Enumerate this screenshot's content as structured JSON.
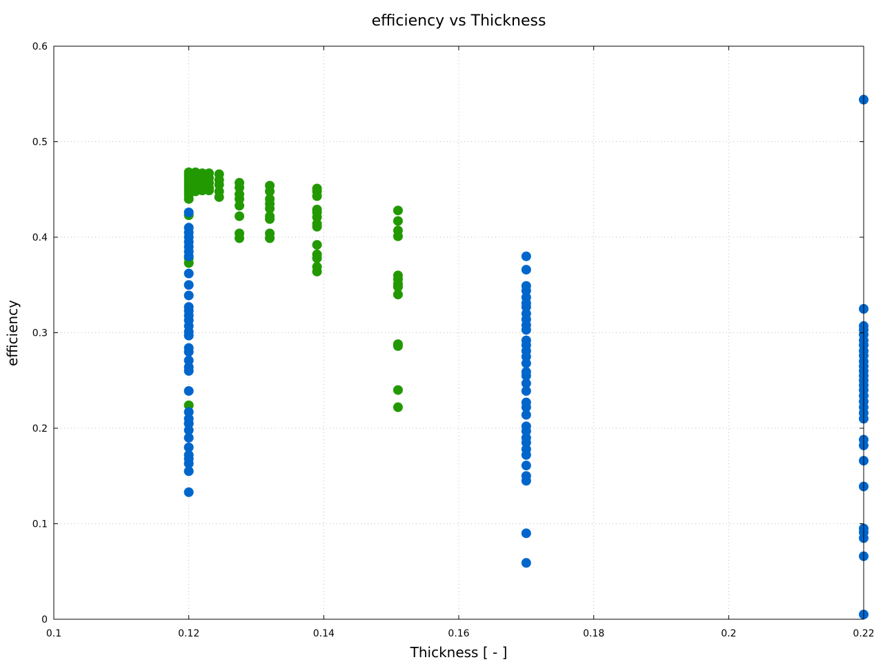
{
  "chart_data": {
    "type": "scatter",
    "title": "efficiency vs Thickness",
    "xlabel": "Thickness [ - ]",
    "ylabel": "efficiency",
    "xlim": [
      0.1,
      0.22
    ],
    "ylim": [
      0,
      0.6
    ],
    "xticks": [
      0.1,
      0.12,
      0.14,
      0.16,
      0.18,
      0.2,
      0.22
    ],
    "xtick_labels": [
      "0.1",
      "0.12",
      "0.14",
      "0.16",
      "0.18",
      "0.2",
      "0.22"
    ],
    "yticks": [
      0,
      0.1,
      0.2,
      0.3,
      0.4,
      0.5,
      0.6
    ],
    "ytick_labels": [
      "0",
      "0.1",
      "0.2",
      "0.3",
      "0.4",
      "0.5",
      "0.6"
    ],
    "grid": true,
    "legend": "none",
    "series": [
      {
        "name": "green",
        "color": "#229900",
        "points": [
          [
            0.12,
            0.468
          ],
          [
            0.12,
            0.465
          ],
          [
            0.12,
            0.462
          ],
          [
            0.12,
            0.459
          ],
          [
            0.12,
            0.456
          ],
          [
            0.12,
            0.453
          ],
          [
            0.12,
            0.45
          ],
          [
            0.12,
            0.447
          ],
          [
            0.12,
            0.444
          ],
          [
            0.12,
            0.44
          ],
          [
            0.12,
            0.423
          ],
          [
            0.12,
            0.378
          ],
          [
            0.12,
            0.373
          ],
          [
            0.12,
            0.224
          ],
          [
            0.12,
            0.205
          ],
          [
            0.121,
            0.468
          ],
          [
            0.121,
            0.463
          ],
          [
            0.121,
            0.458
          ],
          [
            0.121,
            0.453
          ],
          [
            0.121,
            0.448
          ],
          [
            0.122,
            0.467
          ],
          [
            0.122,
            0.462
          ],
          [
            0.122,
            0.457
          ],
          [
            0.122,
            0.452
          ],
          [
            0.122,
            0.449
          ],
          [
            0.123,
            0.467
          ],
          [
            0.123,
            0.462
          ],
          [
            0.123,
            0.457
          ],
          [
            0.123,
            0.452
          ],
          [
            0.123,
            0.449
          ],
          [
            0.1245,
            0.466
          ],
          [
            0.1245,
            0.46
          ],
          [
            0.1245,
            0.455
          ],
          [
            0.1245,
            0.448
          ],
          [
            0.1245,
            0.442
          ],
          [
            0.1275,
            0.457
          ],
          [
            0.1275,
            0.452
          ],
          [
            0.1275,
            0.445
          ],
          [
            0.1275,
            0.44
          ],
          [
            0.1275,
            0.433
          ],
          [
            0.1275,
            0.422
          ],
          [
            0.1275,
            0.404
          ],
          [
            0.1275,
            0.399
          ],
          [
            0.132,
            0.454
          ],
          [
            0.132,
            0.448
          ],
          [
            0.132,
            0.44
          ],
          [
            0.132,
            0.435
          ],
          [
            0.132,
            0.43
          ],
          [
            0.132,
            0.422
          ],
          [
            0.132,
            0.419
          ],
          [
            0.132,
            0.404
          ],
          [
            0.132,
            0.399
          ],
          [
            0.139,
            0.451
          ],
          [
            0.139,
            0.448
          ],
          [
            0.139,
            0.443
          ],
          [
            0.139,
            0.429
          ],
          [
            0.139,
            0.426
          ],
          [
            0.139,
            0.421
          ],
          [
            0.139,
            0.414
          ],
          [
            0.139,
            0.411
          ],
          [
            0.139,
            0.392
          ],
          [
            0.139,
            0.382
          ],
          [
            0.139,
            0.378
          ],
          [
            0.139,
            0.369
          ],
          [
            0.139,
            0.364
          ],
          [
            0.151,
            0.428
          ],
          [
            0.151,
            0.417
          ],
          [
            0.151,
            0.407
          ],
          [
            0.151,
            0.401
          ],
          [
            0.151,
            0.36
          ],
          [
            0.151,
            0.356
          ],
          [
            0.151,
            0.351
          ],
          [
            0.151,
            0.348
          ],
          [
            0.151,
            0.34
          ],
          [
            0.151,
            0.288
          ],
          [
            0.151,
            0.286
          ],
          [
            0.151,
            0.24
          ],
          [
            0.151,
            0.222
          ]
        ]
      },
      {
        "name": "blue",
        "color": "#0066cc",
        "points": [
          [
            0.12,
            0.426
          ],
          [
            0.12,
            0.41
          ],
          [
            0.12,
            0.405
          ],
          [
            0.12,
            0.4
          ],
          [
            0.12,
            0.395
          ],
          [
            0.12,
            0.39
          ],
          [
            0.12,
            0.385
          ],
          [
            0.12,
            0.38
          ],
          [
            0.12,
            0.362
          ],
          [
            0.12,
            0.35
          ],
          [
            0.12,
            0.339
          ],
          [
            0.12,
            0.327
          ],
          [
            0.12,
            0.323
          ],
          [
            0.12,
            0.318
          ],
          [
            0.12,
            0.313
          ],
          [
            0.12,
            0.307
          ],
          [
            0.12,
            0.301
          ],
          [
            0.12,
            0.297
          ],
          [
            0.12,
            0.284
          ],
          [
            0.12,
            0.28
          ],
          [
            0.12,
            0.271
          ],
          [
            0.12,
            0.264
          ],
          [
            0.12,
            0.26
          ],
          [
            0.12,
            0.239
          ],
          [
            0.12,
            0.217
          ],
          [
            0.12,
            0.21
          ],
          [
            0.12,
            0.205
          ],
          [
            0.12,
            0.198
          ],
          [
            0.12,
            0.19
          ],
          [
            0.12,
            0.18
          ],
          [
            0.12,
            0.172
          ],
          [
            0.12,
            0.168
          ],
          [
            0.12,
            0.163
          ],
          [
            0.12,
            0.155
          ],
          [
            0.12,
            0.133
          ],
          [
            0.17,
            0.38
          ],
          [
            0.17,
            0.366
          ],
          [
            0.17,
            0.349
          ],
          [
            0.17,
            0.344
          ],
          [
            0.17,
            0.337
          ],
          [
            0.17,
            0.331
          ],
          [
            0.17,
            0.327
          ],
          [
            0.17,
            0.32
          ],
          [
            0.17,
            0.314
          ],
          [
            0.17,
            0.308
          ],
          [
            0.17,
            0.303
          ],
          [
            0.17,
            0.292
          ],
          [
            0.17,
            0.287
          ],
          [
            0.17,
            0.281
          ],
          [
            0.17,
            0.275
          ],
          [
            0.17,
            0.268
          ],
          [
            0.17,
            0.259
          ],
          [
            0.17,
            0.255
          ],
          [
            0.17,
            0.247
          ],
          [
            0.17,
            0.239
          ],
          [
            0.17,
            0.227
          ],
          [
            0.17,
            0.222
          ],
          [
            0.17,
            0.214
          ],
          [
            0.17,
            0.202
          ],
          [
            0.17,
            0.197
          ],
          [
            0.17,
            0.19
          ],
          [
            0.17,
            0.185
          ],
          [
            0.17,
            0.178
          ],
          [
            0.17,
            0.172
          ],
          [
            0.17,
            0.161
          ],
          [
            0.17,
            0.15
          ],
          [
            0.17,
            0.145
          ],
          [
            0.17,
            0.09
          ],
          [
            0.17,
            0.059
          ],
          [
            0.22,
            0.544
          ],
          [
            0.22,
            0.325
          ],
          [
            0.22,
            0.307
          ],
          [
            0.22,
            0.303
          ],
          [
            0.22,
            0.298
          ],
          [
            0.22,
            0.292
          ],
          [
            0.22,
            0.287
          ],
          [
            0.22,
            0.281
          ],
          [
            0.22,
            0.276
          ],
          [
            0.22,
            0.27
          ],
          [
            0.22,
            0.265
          ],
          [
            0.22,
            0.26
          ],
          [
            0.22,
            0.255
          ],
          [
            0.22,
            0.25
          ],
          [
            0.22,
            0.245
          ],
          [
            0.22,
            0.24
          ],
          [
            0.22,
            0.234
          ],
          [
            0.22,
            0.228
          ],
          [
            0.22,
            0.222
          ],
          [
            0.22,
            0.216
          ],
          [
            0.22,
            0.21
          ],
          [
            0.22,
            0.188
          ],
          [
            0.22,
            0.182
          ],
          [
            0.22,
            0.166
          ],
          [
            0.22,
            0.139
          ],
          [
            0.22,
            0.095
          ],
          [
            0.22,
            0.091
          ],
          [
            0.22,
            0.085
          ],
          [
            0.22,
            0.066
          ],
          [
            0.22,
            0.005
          ]
        ]
      }
    ]
  }
}
